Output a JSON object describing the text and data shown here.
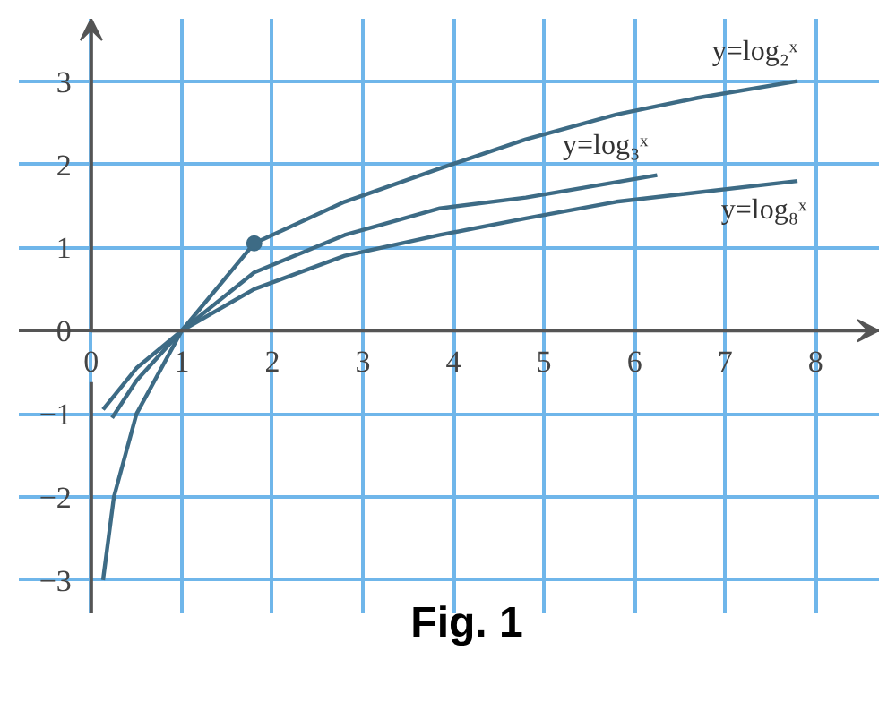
{
  "chart_data": {
    "type": "line",
    "xlim": [
      -0.8,
      8.7
    ],
    "ylim": [
      -3.4,
      3.75
    ],
    "xticks": [
      0,
      1,
      2,
      3,
      4,
      5,
      6,
      7,
      8
    ],
    "yticks": [
      -3,
      -2,
      -1,
      0,
      1,
      2,
      3
    ],
    "grid": true,
    "marker": "none",
    "line_style": "solid",
    "series": [
      {
        "name": "y=log₂ˣ",
        "color": "#3d6b85",
        "x": [
          0.13,
          0.25,
          0.5,
          1,
          1.8,
          2.8,
          3.85,
          4.8,
          5.8,
          6.7,
          7.8
        ],
        "values": [
          -3,
          -2,
          -1,
          0,
          1.05,
          1.55,
          1.95,
          2.3,
          2.6,
          2.8,
          3.0
        ]
      },
      {
        "name": "y=log₃ˣ",
        "color": "#3d6b85",
        "x": [
          0.23,
          0.5,
          1,
          1.8,
          2.8,
          3.85,
          4.8,
          6.25
        ],
        "values": [
          -1.05,
          -0.6,
          0,
          0.7,
          1.15,
          1.47,
          1.6,
          1.87
        ]
      },
      {
        "name": "y=log₈ˣ",
        "color": "#3d6b85",
        "x": [
          0.13,
          0.5,
          1,
          1.8,
          2.8,
          3.85,
          4.8,
          5.8,
          7.8
        ],
        "values": [
          -0.95,
          -0.45,
          0,
          0.5,
          0.9,
          1.15,
          1.35,
          1.55,
          1.8
        ]
      },
      {
        "type": "scatter",
        "marker": "circle",
        "color": "#3d6b85",
        "x": [
          1.8
        ],
        "values": [
          1.05
        ]
      }
    ],
    "annotations": [
      "Fig. 1"
    ]
  }
}
